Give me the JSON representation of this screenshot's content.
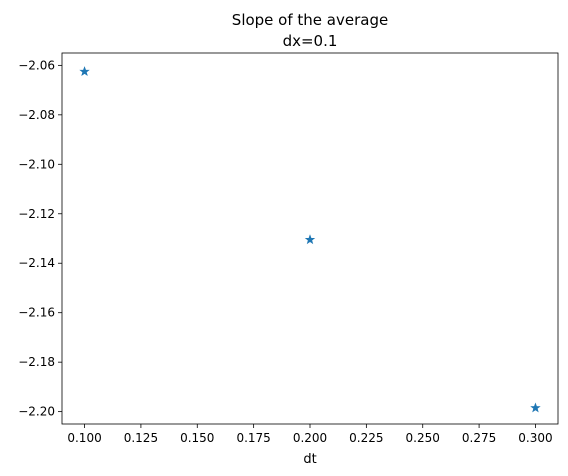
{
  "chart_data": {
    "type": "scatter",
    "title": "Slope of the average",
    "subtitle": "dx=0.1",
    "xlabel": "dt",
    "ylabel": "",
    "xlim": [
      0.09,
      0.31
    ],
    "ylim": [
      -2.205,
      -2.055
    ],
    "xticks": [
      0.1,
      0.125,
      0.15,
      0.175,
      0.2,
      0.225,
      0.25,
      0.275,
      0.3
    ],
    "xtick_labels": [
      "0.100",
      "0.125",
      "0.150",
      "0.175",
      "0.200",
      "0.225",
      "0.250",
      "0.275",
      "0.300"
    ],
    "yticks": [
      -2.06,
      -2.08,
      -2.1,
      -2.12,
      -2.14,
      -2.16,
      -2.18,
      -2.2
    ],
    "ytick_labels": [
      "−2.06",
      "−2.08",
      "−2.10",
      "−2.12",
      "−2.14",
      "−2.16",
      "−2.18",
      "−2.20"
    ],
    "grid": false,
    "marker": "star",
    "series": [
      {
        "color": "#1f77b4",
        "x": [
          0.1,
          0.2,
          0.3
        ],
        "y": [
          -2.0625,
          -2.1305,
          -2.1985
        ]
      }
    ]
  }
}
